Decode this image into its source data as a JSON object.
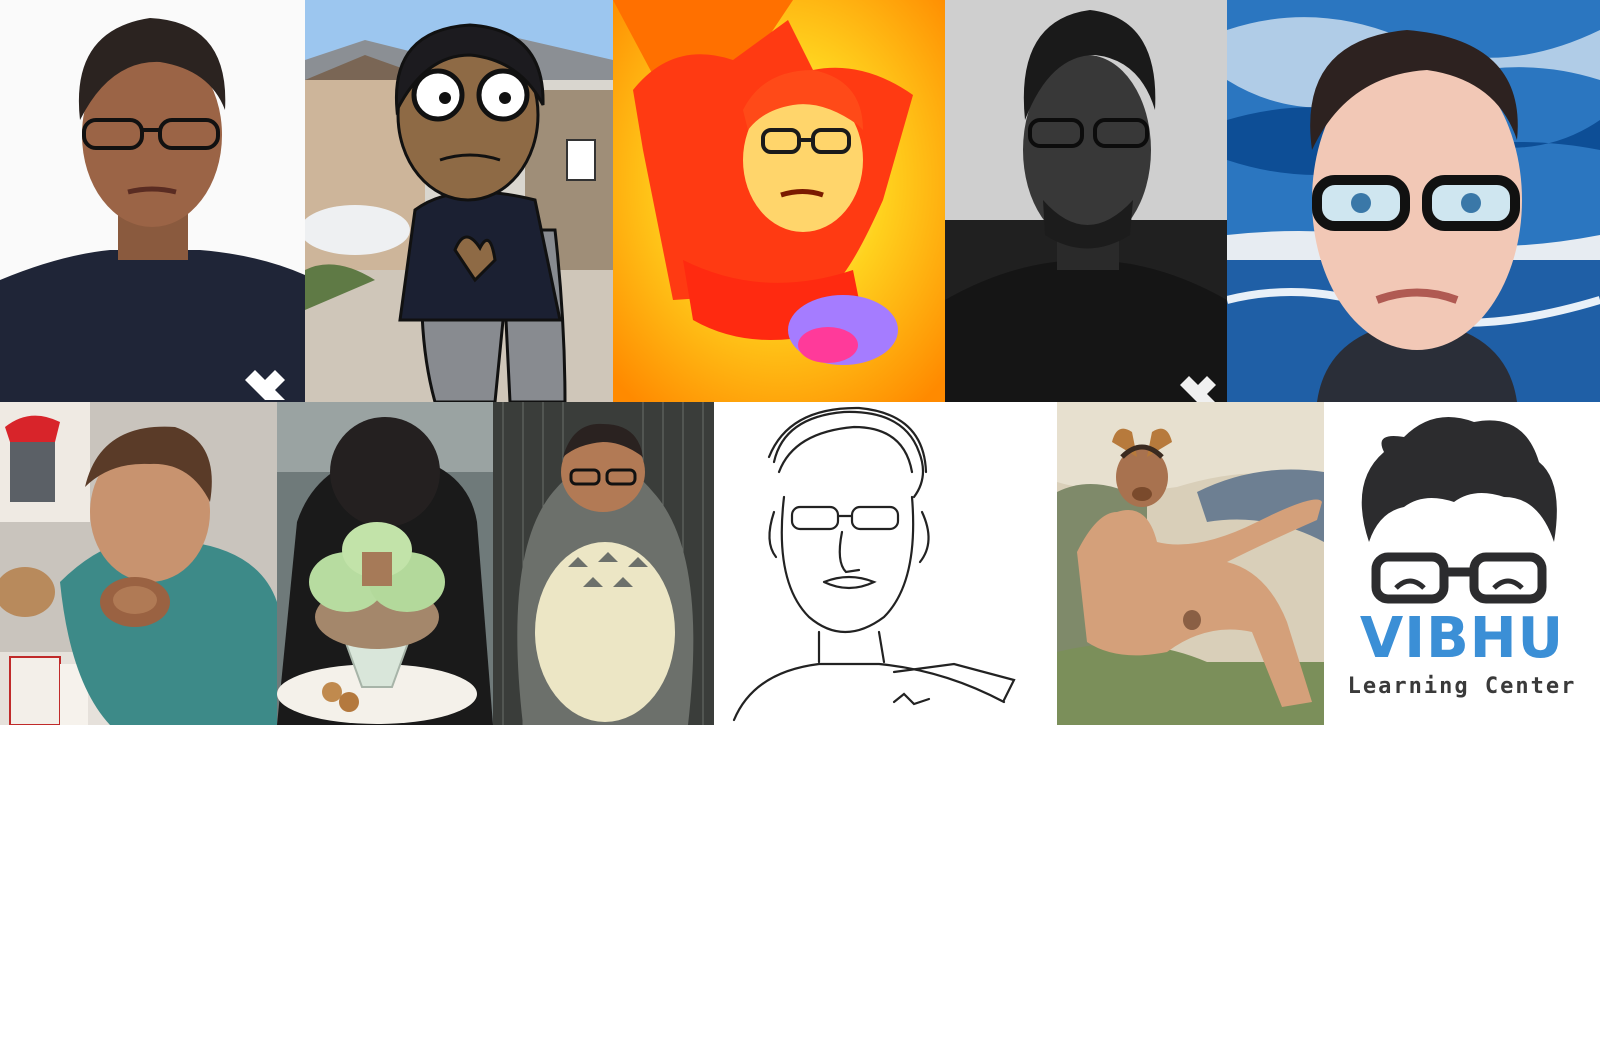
{
  "collage": {
    "tiles": [
      {
        "name": "photo-portrait-glasses"
      },
      {
        "name": "cartoon-character-street"
      },
      {
        "name": "deep-fried-wizard-meme"
      },
      {
        "name": "grayscale-portrait"
      },
      {
        "name": "painterly-portrait-ocean"
      },
      {
        "name": "photo-eating-face-burger"
      },
      {
        "name": "photo-ice-cream-sundae-face"
      },
      {
        "name": "totoro-face-edit"
      },
      {
        "name": "line-sketch-portrait"
      },
      {
        "name": "classical-painting-face-edit"
      },
      {
        "name": "learning-center-logo"
      }
    ]
  },
  "logo": {
    "title": "VIBHU",
    "subtitle": "Learning Center",
    "title_color": "#3b8fd6",
    "subtitle_color": "#3a3a3a"
  }
}
